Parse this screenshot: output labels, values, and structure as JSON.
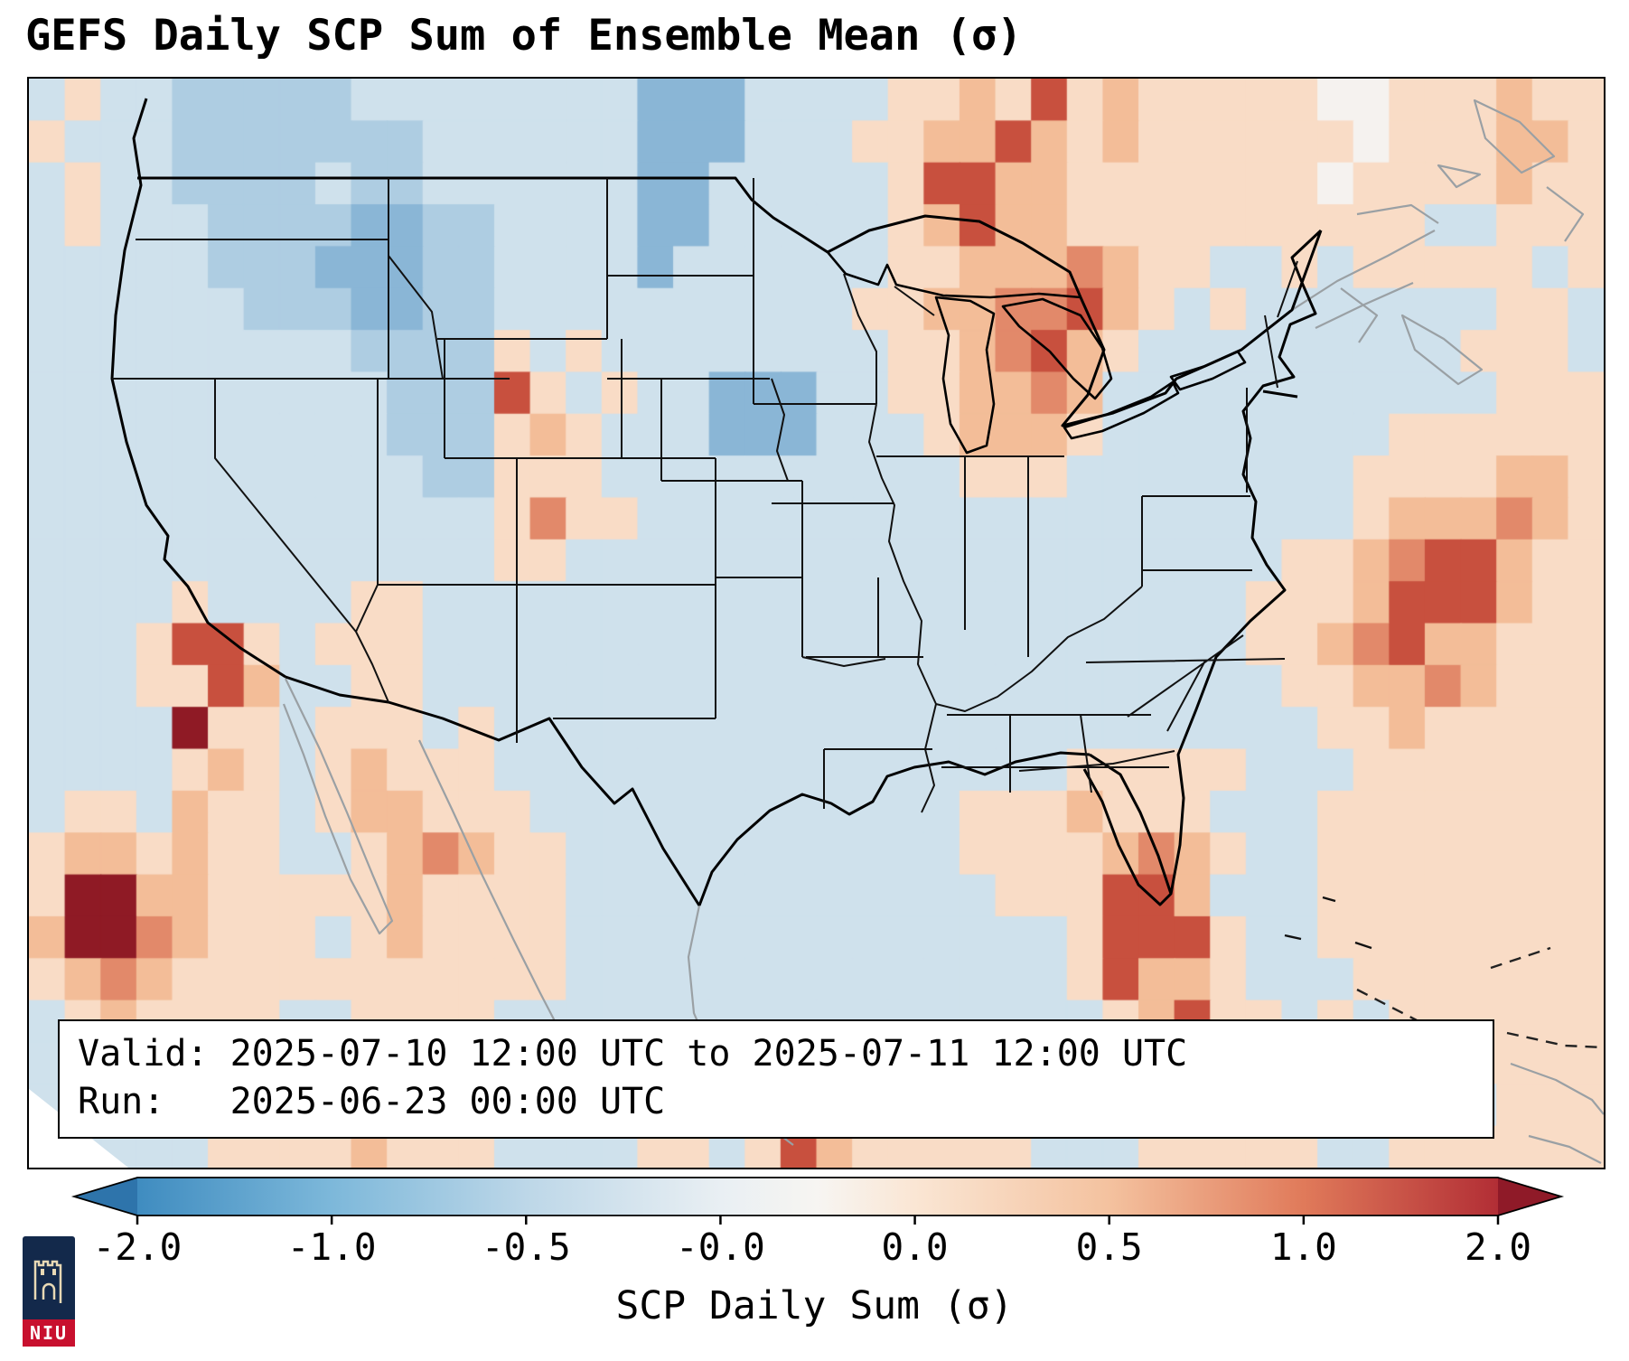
{
  "info_box": {
    "valid_line": "Valid: 2025-07-10 12:00 UTC to 2025-07-11 12:00 UTC",
    "run_line": "Run:   2025-06-23 00:00 UTC"
  },
  "logo": {
    "text": "NIU"
  },
  "chart_data": {
    "type": "heatmap",
    "title": "GEFS Daily SCP Sum of Ensemble Mean (σ)",
    "valid": "2025-07-10 12:00 UTC to 2025-07-11 12:00 UTC",
    "run": "2025-06-23 00:00 UTC",
    "colorbar": {
      "label": "SCP Daily Sum (σ)",
      "tick_labels": [
        "-2.0",
        "-1.0",
        "-0.5",
        "-0.0",
        "0.0",
        "0.5",
        "1.0",
        "2.0"
      ],
      "tick_values": [
        -2.0,
        -1.0,
        -0.5,
        -0.0,
        0.0,
        0.5,
        1.0,
        2.0
      ],
      "under_color": "#2e74ab",
      "over_color": "#8f1a28",
      "stops": [
        {
          "pos": 0.0,
          "color": "#3f8cc0"
        },
        {
          "pos": 0.143,
          "color": "#7db8da"
        },
        {
          "pos": 0.286,
          "color": "#bdd7e8"
        },
        {
          "pos": 0.429,
          "color": "#e9eff3"
        },
        {
          "pos": 0.5,
          "color": "#f7f5f2"
        },
        {
          "pos": 0.571,
          "color": "#fae6d4"
        },
        {
          "pos": 0.714,
          "color": "#f4c29f"
        },
        {
          "pos": 0.857,
          "color": "#e07a5a"
        },
        {
          "pos": 1.0,
          "color": "#b22e35"
        }
      ]
    },
    "grid": {
      "cols": 44,
      "rows": 26,
      "units": "sigma",
      "value_encoding": {
        "b": -1.0,
        "c": -0.5,
        "l": -0.2,
        "w": 0.0,
        "o": 0.3,
        "O": 0.6,
        "r": 1.0,
        "R": 1.5,
        "M": 2.0
      },
      "palette": {
        "b": "#8ab6d6",
        "c": "#aecde2",
        "l": "#cfe1ec",
        "w": "#f5f2ef",
        "o": "#f9dcc6",
        "O": "#f3bd98",
        "r": "#e2896a",
        "R": "#c8503e",
        "M": "#8f1a25"
      },
      "cells": [
        [
          "loll",
          "cccc",
          "clll",
          "llll",
          "lbbb",
          "llll",
          "ooOo",
          "RoOo",
          "oooo",
          "wwoo",
          "oOoo"
        ],
        [
          "olll",
          "cccc",
          "cccl",
          "llll",
          "lbbb",
          "lllo",
          "oOOR",
          "OoOo",
          "oooo",
          "owoo",
          "oOOo"
        ],
        [
          "loll",
          "cccc",
          "lccl",
          "llll",
          "lbbl",
          "llll",
          "oRRO",
          "Oooo",
          "oooo",
          "wooo",
          "oOoo"
        ],
        [
          "loll",
          "lccc",
          "cbbc",
          "clll",
          "lbbl",
          "llll",
          "oORO",
          "Oooo",
          "oooo",
          "oool",
          "looo"
        ],
        [
          "llll",
          "lccc",
          "bbbc",
          "clll",
          "lbll",
          "llll",
          "ooOO",
          "OrOo",
          "ollo",
          "looo",
          "oolo"
        ],
        [
          "llll",
          "llcc",
          "cbbc",
          "clll",
          "llll",
          "lllo",
          "oOOr",
          "rROo",
          "loll",
          "llll",
          "lool"
        ],
        [
          "llll",
          "llll",
          "lccc",
          "colo",
          "llll",
          "llll",
          "ooOr",
          "ROol",
          "llll",
          "llll",
          "oool"
        ],
        [
          "llll",
          "llll",
          "llcc",
          "cRol",
          "ollb",
          "bbll",
          "ooOO",
          "rOll",
          "llll",
          "llll",
          "looo"
        ],
        [
          "llll",
          "llll",
          "llcc",
          "coOo",
          "lllb",
          "bbll",
          "loOO",
          "Ooll",
          "llll",
          "lloo",
          "oooo"
        ],
        [
          "llll",
          "llll",
          "lllc",
          "cooo",
          "llll",
          "llll",
          "lloo",
          "olll",
          "llll",
          "looo",
          "oOOo"
        ],
        [
          "llll",
          "llll",
          "llll",
          "loro",
          "olll",
          "llll",
          "llll",
          "llll",
          "llll",
          "loOO",
          "OrOo"
        ],
        [
          "llll",
          "llll",
          "llll",
          "lool",
          "llll",
          "llll",
          "llll",
          "llll",
          "lllo",
          "oOrR",
          "ROoo"
        ],
        [
          "llll",
          "olll",
          "lool",
          "llll",
          "llll",
          "llll",
          "llll",
          "llll",
          "lloo",
          "oORR",
          "ROoo"
        ],
        [
          "lllo",
          "RRol",
          "oool",
          "llll",
          "llll",
          "llll",
          "llll",
          "llll",
          "lloo",
          "OrRO",
          "Oooo"
        ],
        [
          "lllo",
          "oROl",
          "lool",
          "llll",
          "llll",
          "llll",
          "llll",
          "llll",
          "lllo",
          "oOOr",
          "Oooo"
        ],
        [
          "llll",
          "Mool",
          "oool",
          "olll",
          "llll",
          "llll",
          "llll",
          "llll",
          "llll",
          "ooOo",
          "oooo"
        ],
        [
          "llll",
          "oOol",
          "oOoo",
          "olll",
          "llll",
          "llll",
          "llll",
          "looo",
          "ooll",
          "looo",
          "oooo"
        ],
        [
          "lool",
          "Oool",
          "oOOo",
          "ooll",
          "llll",
          "llll",
          "lloo",
          "oOoo",
          "olll",
          "oooo",
          "oooo"
        ],
        [
          "oOOo",
          "Oool",
          "loOr",
          "Oool",
          "llll",
          "llll",
          "lloo",
          "ooOr",
          "Ooll",
          "oooo",
          "oooo"
        ],
        [
          "oMMO",
          "Oooo",
          "ooOo",
          "oool",
          "llll",
          "llll",
          "lllo",
          "ooRR",
          "Olll",
          "oooo",
          "oooo"
        ],
        [
          "OMMr",
          "Oooo",
          "loOo",
          "oool",
          "llll",
          "llll",
          "llll",
          "loRR",
          "Roll",
          "oooo",
          "oooo"
        ],
        [
          "oOrO",
          "oooo",
          "oooo",
          "oool",
          "llll",
          "llll",
          "llll",
          "loRO",
          "Ooll",
          "looo",
          "oooo"
        ],
        [
          "loOo",
          "oool",
          "looo",
          "olll",
          "llll",
          "llll",
          "llll",
          "lloO",
          "Rool",
          "oloo",
          "oooo"
        ],
        [
          "lloo",
          "oooo",
          "oooo",
          "llll",
          "llll",
          "llll",
          "llll",
          "lllo",
          "orol",
          "loll",
          "oooo"
        ],
        [
          "lllo",
          "oOoo",
          "oooo",
          "llll",
          "llll",
          "loll",
          "olol",
          "llll",
          "lool",
          "olll",
          "looo"
        ],
        [
          "llll",
          "looo",
          "oOoo",
          "olll",
          "lool",
          "oROo",
          "oooo",
          "lllo",
          "oooo",
          "lloo",
          "oooo"
        ]
      ]
    }
  }
}
